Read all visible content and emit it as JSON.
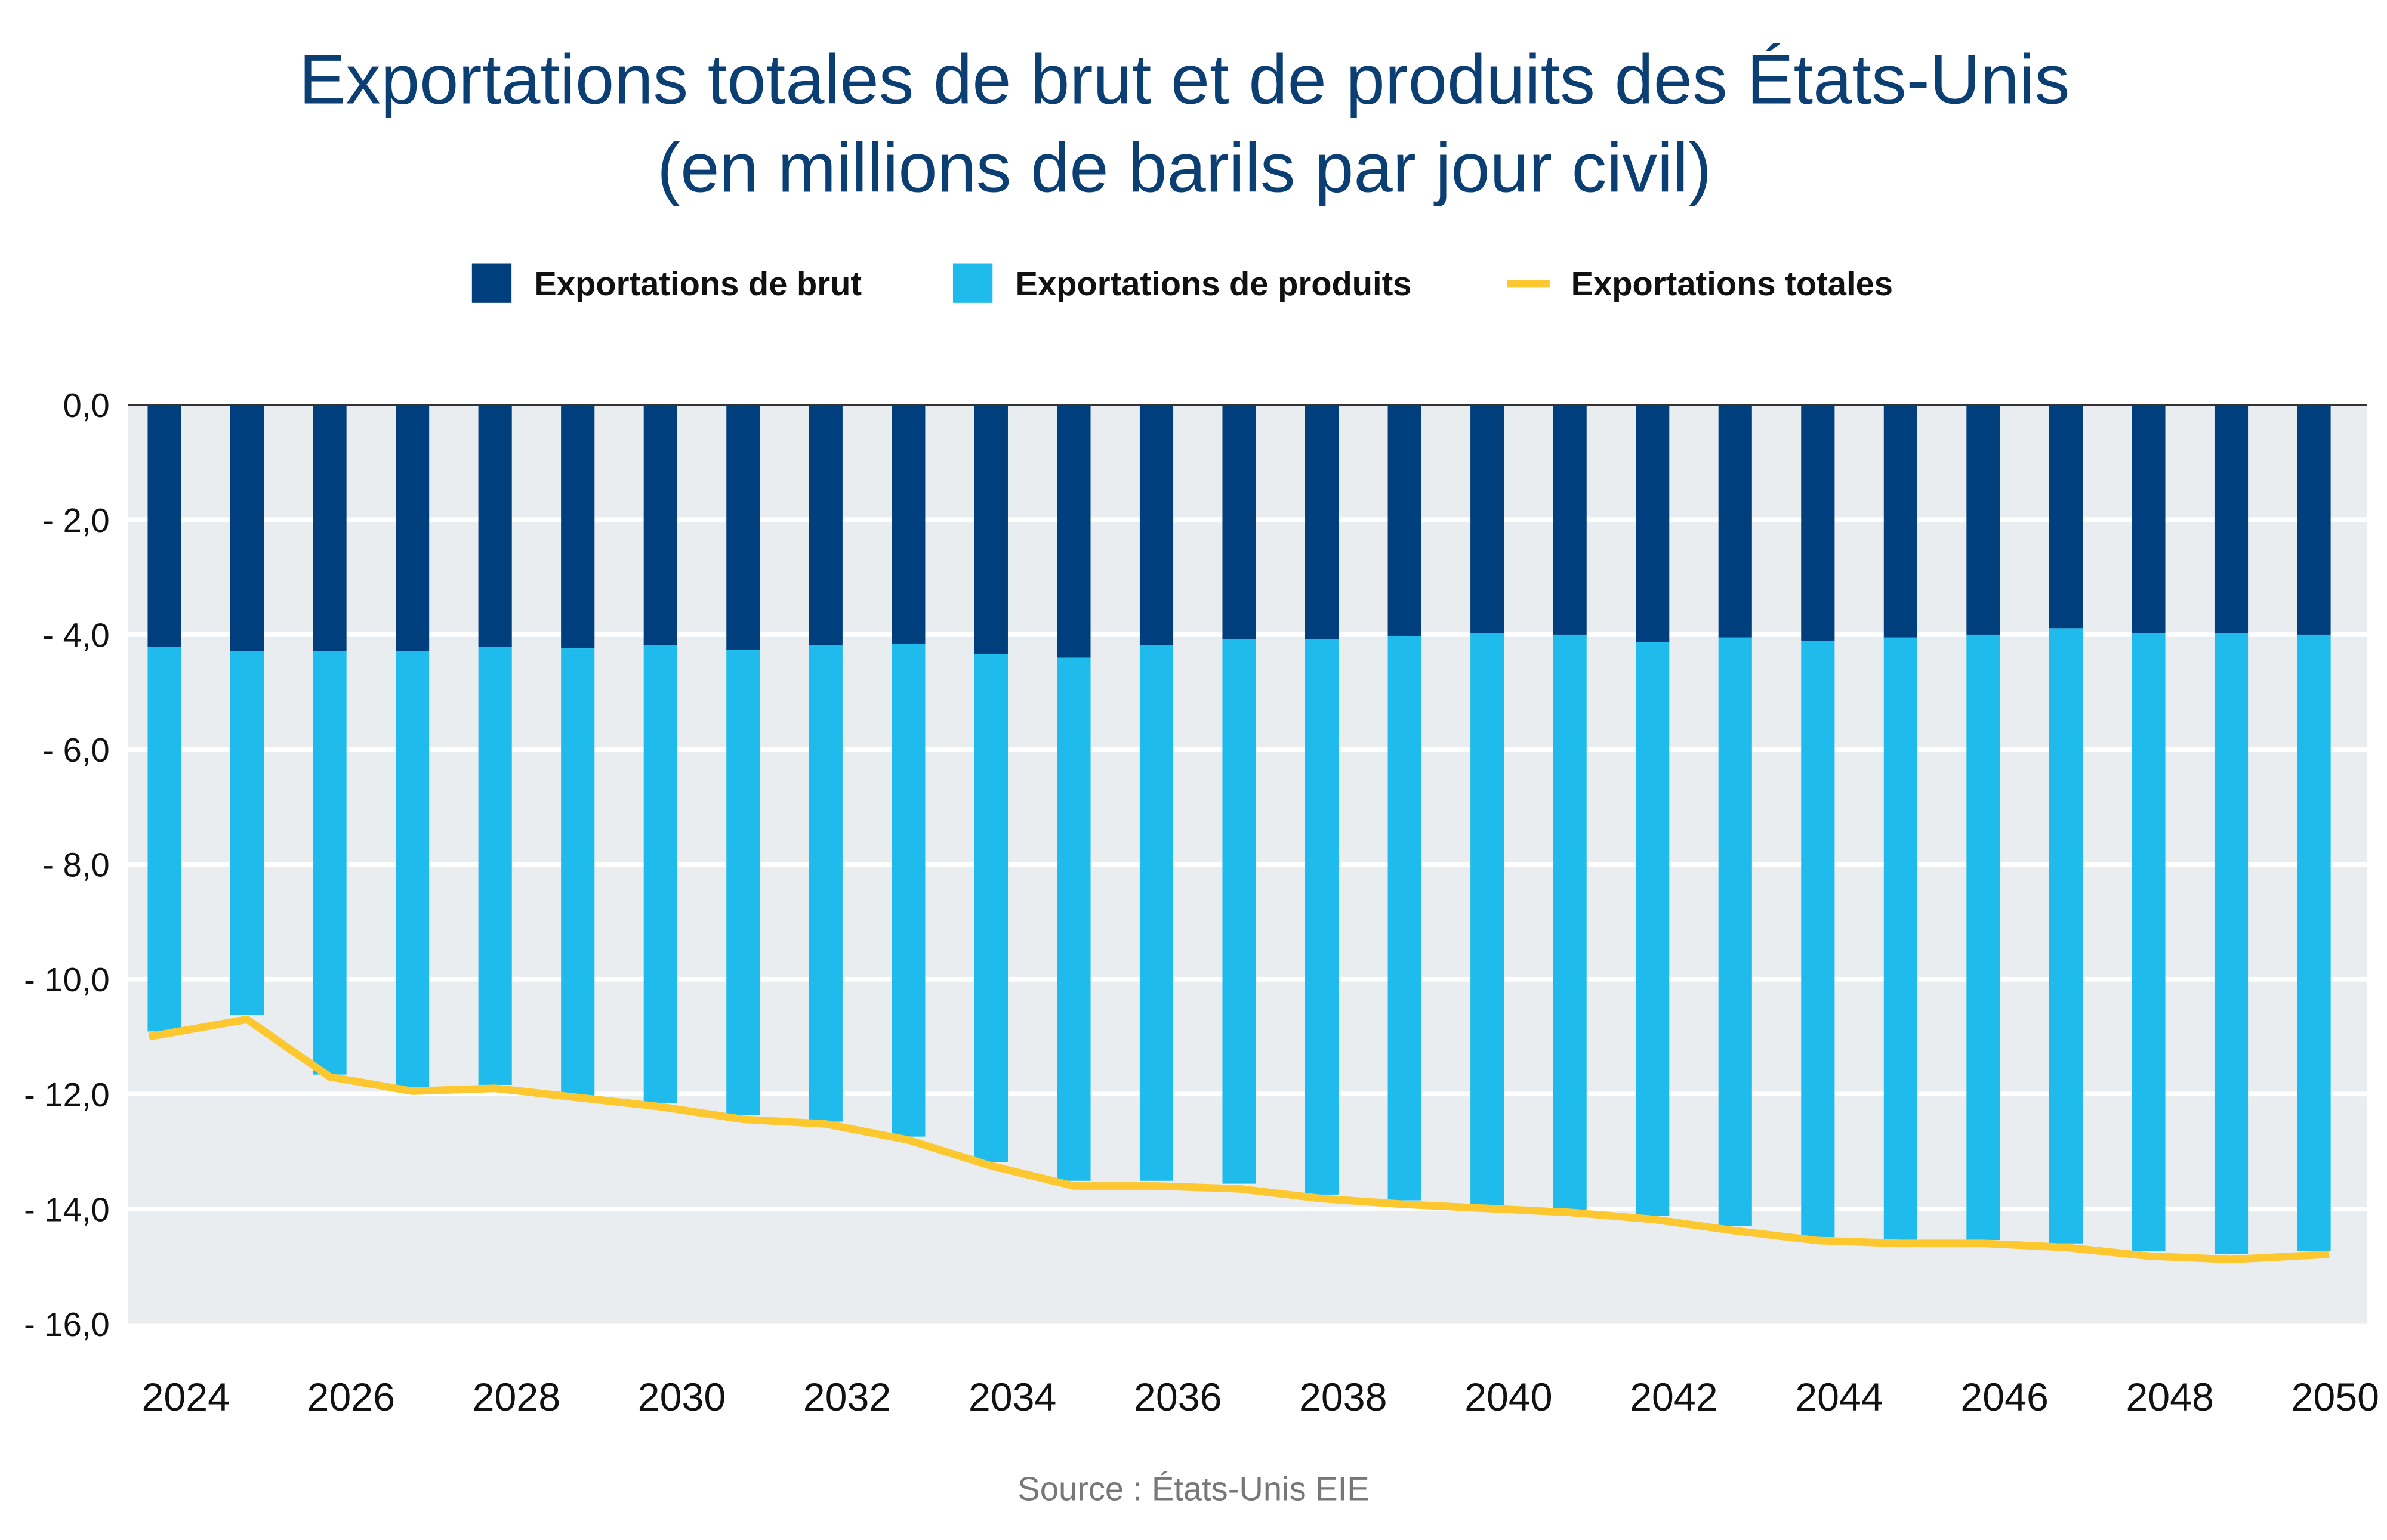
{
  "chart_data": {
    "type": "bar",
    "stacked": true,
    "title": "Exportations totales de brut et de produits des États-Unis",
    "subtitle": "(en millions de barils par jour civil)",
    "source": "Source : États-Unis EIE",
    "xlabel": "",
    "ylabel": "",
    "ylim": [
      -16,
      0
    ],
    "yticks": [
      "0,0",
      "- 2,0",
      "- 4,0",
      "- 6,0",
      "- 8,0",
      "- 10,0",
      "- 12,0",
      "- 14,0",
      "- 16,0"
    ],
    "xticks": [
      "2024",
      "2026",
      "2028",
      "2030",
      "2032",
      "2034",
      "2036",
      "2038",
      "2040",
      "2042",
      "2044",
      "2046",
      "2048",
      "2050"
    ],
    "grid": true,
    "legend_position": "top",
    "categories": [
      2024,
      2025,
      2026,
      2027,
      2028,
      2029,
      2030,
      2031,
      2032,
      2033,
      2034,
      2035,
      2036,
      2037,
      2038,
      2039,
      2040,
      2041,
      2042,
      2043,
      2044,
      2045,
      2046,
      2047,
      2048,
      2049,
      2050
    ],
    "series": [
      {
        "name": "Exportations de brut",
        "type": "bar",
        "color": "#003f7d",
        "values": [
          -4.21,
          -4.29,
          -4.29,
          -4.29,
          -4.21,
          -4.24,
          -4.19,
          -4.26,
          -4.19,
          -4.16,
          -4.34,
          -4.4,
          -4.19,
          -4.08,
          -4.08,
          -4.03,
          -3.97,
          -4.0,
          -4.13,
          -4.05,
          -4.11,
          -4.05,
          -4.0,
          -3.89,
          -3.97,
          -3.97,
          -4.0
        ]
      },
      {
        "name": "Exportations de produits",
        "type": "bar",
        "color": "#1fbbec",
        "values": [
          -6.7,
          -6.33,
          -7.37,
          -7.6,
          -7.63,
          -7.79,
          -7.97,
          -8.11,
          -8.29,
          -8.58,
          -8.85,
          -9.11,
          -9.32,
          -9.48,
          -9.67,
          -9.82,
          -9.96,
          -10.01,
          -9.99,
          -10.25,
          -10.38,
          -10.49,
          -10.54,
          -10.71,
          -10.76,
          -10.81,
          -10.73
        ]
      },
      {
        "name": "Exportations totales",
        "type": "line",
        "color": "#fdc82f",
        "values": [
          -11.0,
          -10.7,
          -11.7,
          -11.95,
          -11.9,
          -12.06,
          -12.22,
          -12.44,
          -12.52,
          -12.8,
          -13.25,
          -13.6,
          -13.6,
          -13.65,
          -13.82,
          -13.92,
          -13.99,
          -14.06,
          -14.18,
          -14.38,
          -14.55,
          -14.6,
          -14.6,
          -14.67,
          -14.82,
          -14.88,
          -14.79
        ]
      }
    ]
  }
}
